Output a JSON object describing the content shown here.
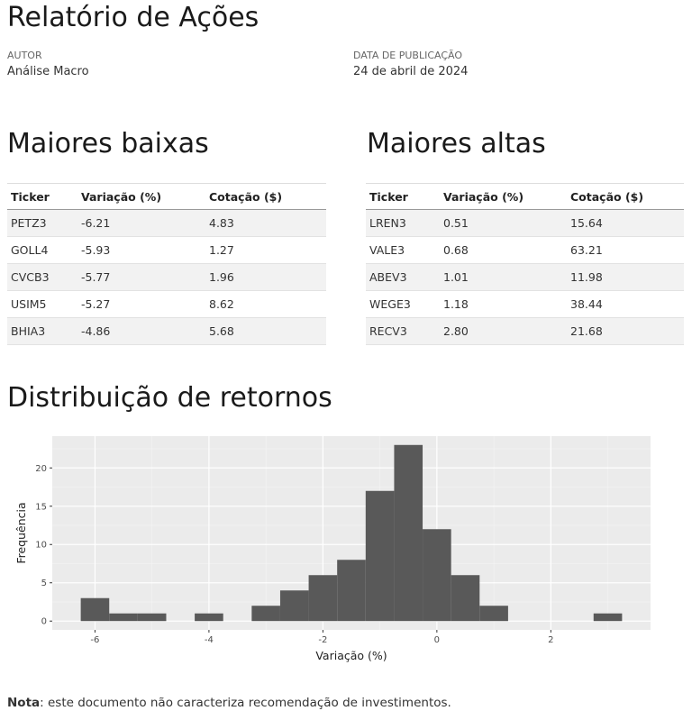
{
  "header": {
    "title": "Relatório de Ações",
    "author_label": "AUTOR",
    "author": "Análise Macro",
    "date_label": "DATA DE PUBLICAÇÃO",
    "date": "24 de abril de 2024"
  },
  "losers": {
    "title": "Maiores baixas",
    "columns": [
      "Ticker",
      "Variação (%)",
      "Cotação ($)"
    ],
    "rows": [
      [
        "PETZ3",
        "-6.21",
        "4.83"
      ],
      [
        "GOLL4",
        "-5.93",
        "1.27"
      ],
      [
        "CVCB3",
        "-5.77",
        "1.96"
      ],
      [
        "USIM5",
        "-5.27",
        "8.62"
      ],
      [
        "BHIA3",
        "-4.86",
        "5.68"
      ]
    ]
  },
  "gainers": {
    "title": "Maiores altas",
    "columns": [
      "Ticker",
      "Variação (%)",
      "Cotação ($)"
    ],
    "rows": [
      [
        "LREN3",
        "0.51",
        "15.64"
      ],
      [
        "VALE3",
        "0.68",
        "63.21"
      ],
      [
        "ABEV3",
        "1.01",
        "11.98"
      ],
      [
        "WEGE3",
        "1.18",
        "38.44"
      ],
      [
        "RECV3",
        "2.80",
        "21.68"
      ]
    ]
  },
  "distribution": {
    "title": "Distribuição de retornos"
  },
  "chart_data": {
    "type": "bar",
    "bin_width": 0.5,
    "bins": [
      {
        "x0": -6.25,
        "x1": -5.75,
        "count": 3
      },
      {
        "x0": -5.75,
        "x1": -5.25,
        "count": 1
      },
      {
        "x0": -5.25,
        "x1": -4.75,
        "count": 1
      },
      {
        "x0": -4.75,
        "x1": -4.25,
        "count": 0
      },
      {
        "x0": -4.25,
        "x1": -3.75,
        "count": 1
      },
      {
        "x0": -3.75,
        "x1": -3.25,
        "count": 0
      },
      {
        "x0": -3.25,
        "x1": -2.75,
        "count": 2
      },
      {
        "x0": -2.75,
        "x1": -2.25,
        "count": 4
      },
      {
        "x0": -2.25,
        "x1": -1.75,
        "count": 6
      },
      {
        "x0": -1.75,
        "x1": -1.25,
        "count": 8
      },
      {
        "x0": -1.25,
        "x1": -0.75,
        "count": 17
      },
      {
        "x0": -0.75,
        "x1": -0.25,
        "count": 23
      },
      {
        "x0": -0.25,
        "x1": 0.25,
        "count": 12
      },
      {
        "x0": 0.25,
        "x1": 0.75,
        "count": 6
      },
      {
        "x0": 0.75,
        "x1": 1.25,
        "count": 2
      },
      {
        "x0": 1.25,
        "x1": 1.75,
        "count": 0
      },
      {
        "x0": 1.75,
        "x1": 2.25,
        "count": 0
      },
      {
        "x0": 2.25,
        "x1": 2.75,
        "count": 0
      },
      {
        "x0": 2.75,
        "x1": 3.25,
        "count": 1
      }
    ],
    "xlabel": "Variação (%)",
    "ylabel": "Frequência",
    "xlim": [
      -6.75,
      3.75
    ],
    "ylim": [
      -1.15,
      24.15
    ],
    "xticks": [
      -6,
      -4,
      -2,
      0,
      2
    ],
    "yticks": [
      0,
      5,
      10,
      15,
      20
    ],
    "grid": true,
    "bar_color": "#595959",
    "panel_color": "#ebebeb"
  },
  "note": {
    "label": "Nota",
    "text": ": este documento não caracteriza recomendação de investimentos."
  }
}
